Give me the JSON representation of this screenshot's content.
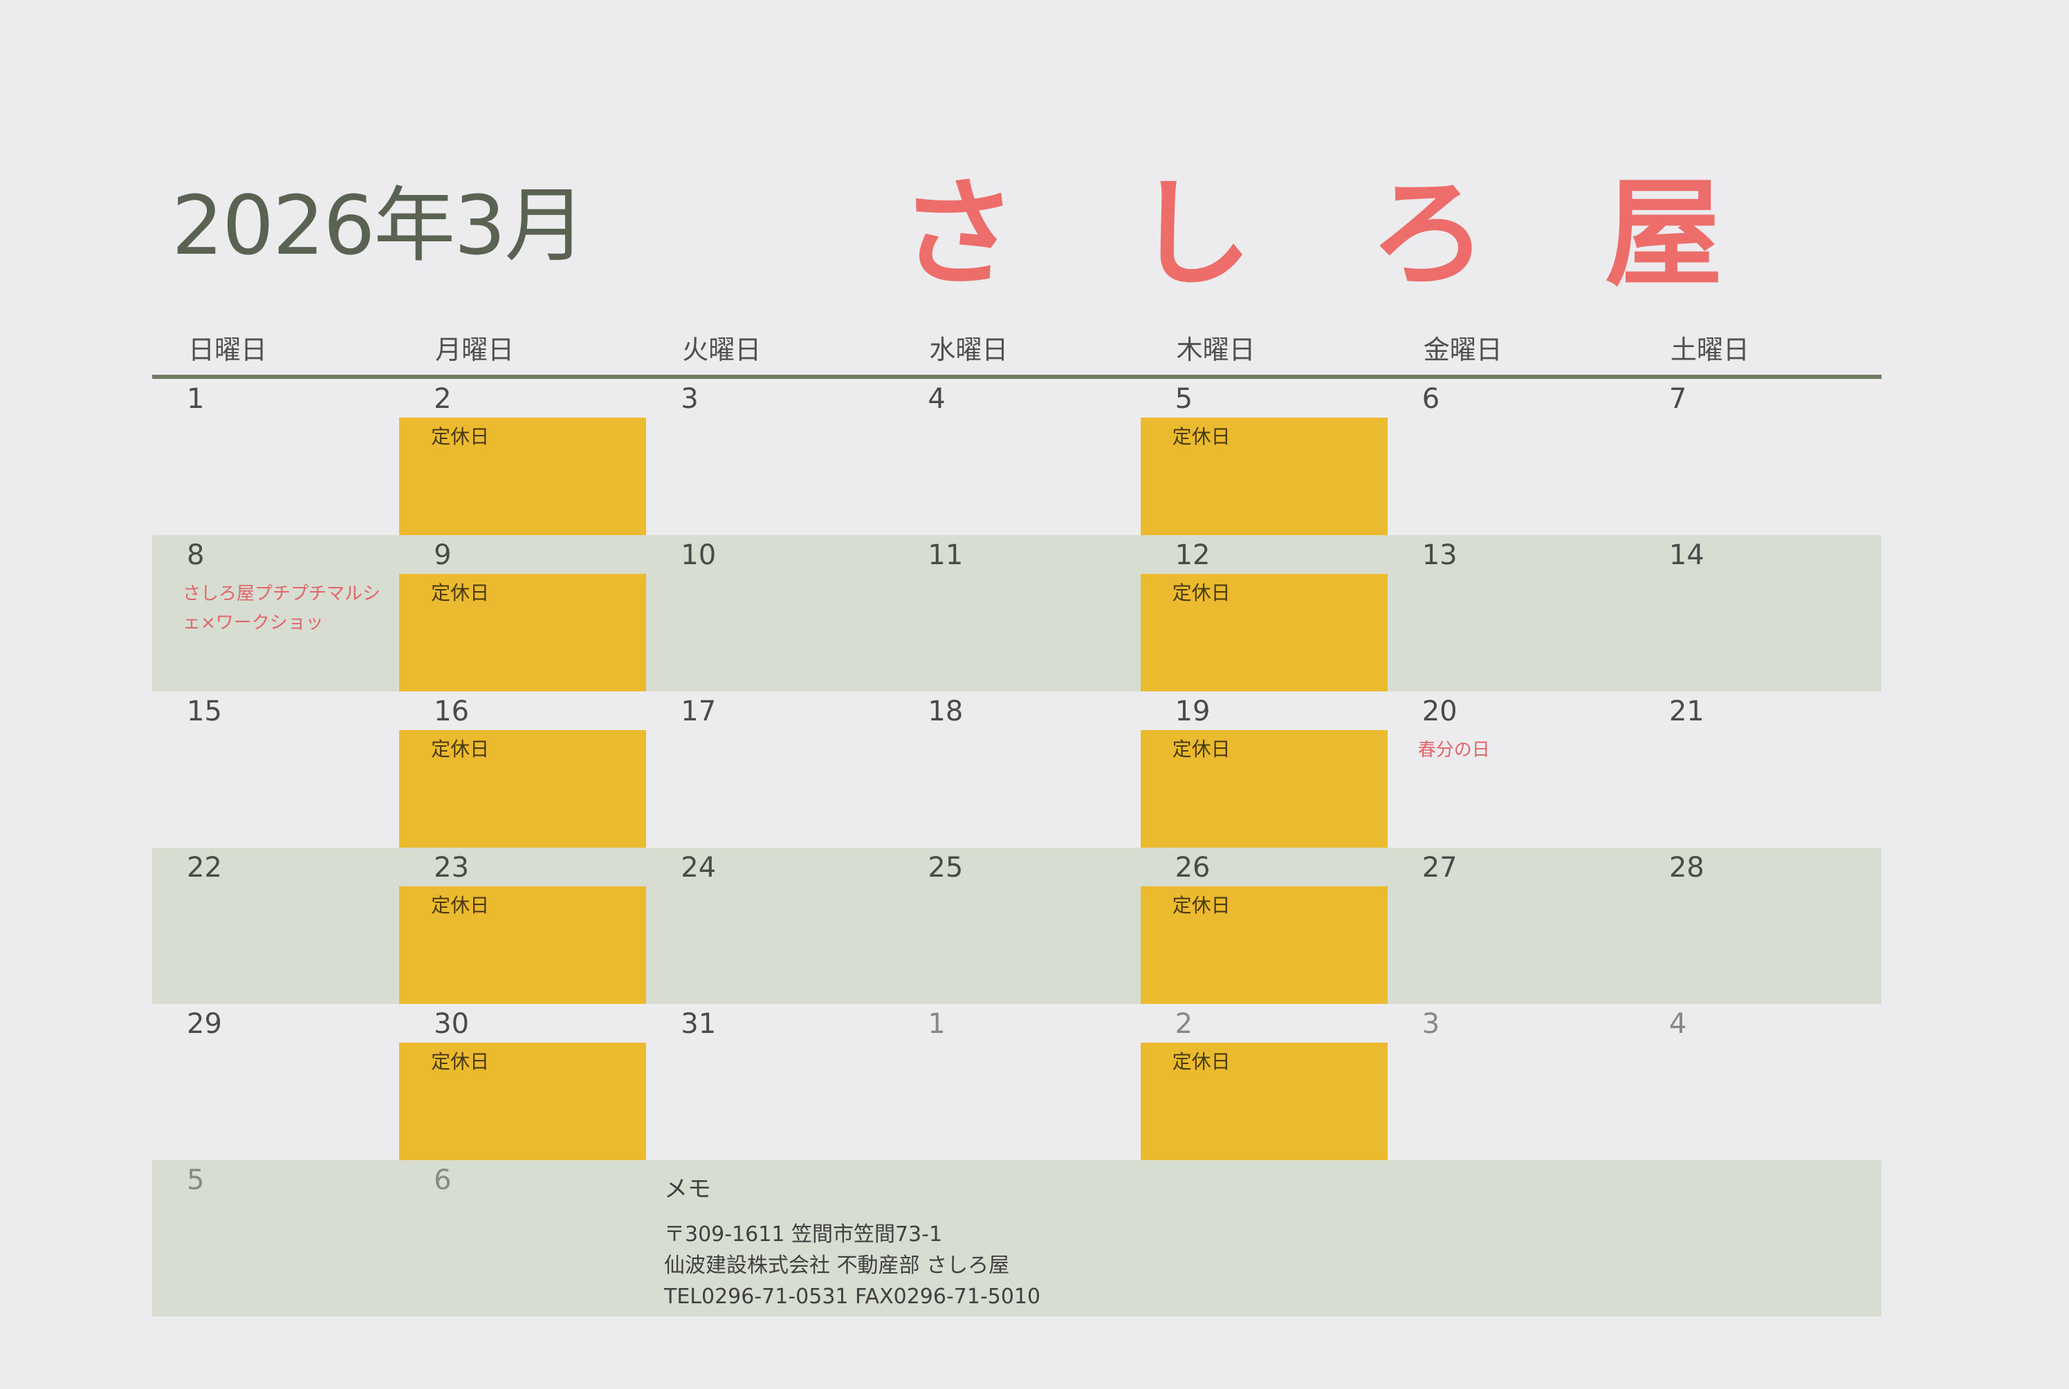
{
  "title": "2026年3月",
  "logo": [
    "さ",
    "し",
    "ろ",
    "屋"
  ],
  "weekdays": [
    "日曜日",
    "月曜日",
    "火曜日",
    "水曜日",
    "木曜日",
    "金曜日",
    "土曜日"
  ],
  "closed_label": "定休日",
  "colors": {
    "closed": "#ecba2e",
    "holiday_text": "#e0666a",
    "shaded_row": "#d8ddd2",
    "logo": "#ec6d6a"
  },
  "weeks": [
    [
      {
        "d": "1"
      },
      {
        "d": "2",
        "closed": true
      },
      {
        "d": "3"
      },
      {
        "d": "4"
      },
      {
        "d": "5",
        "closed": true
      },
      {
        "d": "6"
      },
      {
        "d": "7"
      }
    ],
    [
      {
        "d": "8",
        "event": "さしろ屋プチプチマルシェ×ワークショッ"
      },
      {
        "d": "9",
        "closed": true
      },
      {
        "d": "10"
      },
      {
        "d": "11"
      },
      {
        "d": "12",
        "closed": true
      },
      {
        "d": "13"
      },
      {
        "d": "14"
      }
    ],
    [
      {
        "d": "15"
      },
      {
        "d": "16",
        "closed": true
      },
      {
        "d": "17"
      },
      {
        "d": "18"
      },
      {
        "d": "19",
        "closed": true
      },
      {
        "d": "20",
        "event": "春分の日"
      },
      {
        "d": "21"
      }
    ],
    [
      {
        "d": "22"
      },
      {
        "d": "23",
        "closed": true
      },
      {
        "d": "24"
      },
      {
        "d": "25"
      },
      {
        "d": "26",
        "closed": true
      },
      {
        "d": "27"
      },
      {
        "d": "28"
      }
    ],
    [
      {
        "d": "29"
      },
      {
        "d": "30",
        "closed": true
      },
      {
        "d": "31"
      },
      {
        "d": "1",
        "other": true
      },
      {
        "d": "2",
        "closed": true,
        "other": true
      },
      {
        "d": "3",
        "other": true
      },
      {
        "d": "4",
        "other": true
      }
    ],
    [
      {
        "d": "5",
        "other": true
      },
      {
        "d": "6",
        "other": true
      }
    ]
  ],
  "memo": {
    "title": "メモ",
    "lines": [
      "〒309-1611  笠間市笠間73-1",
      "仙波建設株式会社  不動産部  さしろ屋",
      "TEL0296-71-0531  FAX0296-71-5010"
    ]
  }
}
